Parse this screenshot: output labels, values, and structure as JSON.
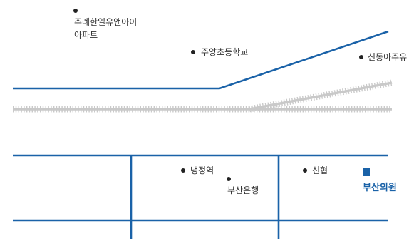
{
  "map": {
    "colors": {
      "road": "#1a62a8",
      "railway": "#c9c9c9",
      "poi_dot": "#222222",
      "destination": "#1a62a8",
      "text": "#333333"
    },
    "landmarks": [
      {
        "id": "apartment",
        "lines": [
          "주례한일유앤아이",
          "아파트"
        ]
      },
      {
        "id": "school",
        "lines": [
          "주양초등학교"
        ]
      },
      {
        "id": "gas-station",
        "lines": [
          "신동아주유"
        ]
      },
      {
        "id": "station",
        "lines": [
          "냉정역"
        ]
      },
      {
        "id": "bank",
        "lines": [
          "부산은행"
        ]
      },
      {
        "id": "cooperative",
        "lines": [
          "신협"
        ]
      }
    ],
    "destination": {
      "label": "부산의원",
      "marker_icon": "square-marker-icon"
    }
  }
}
